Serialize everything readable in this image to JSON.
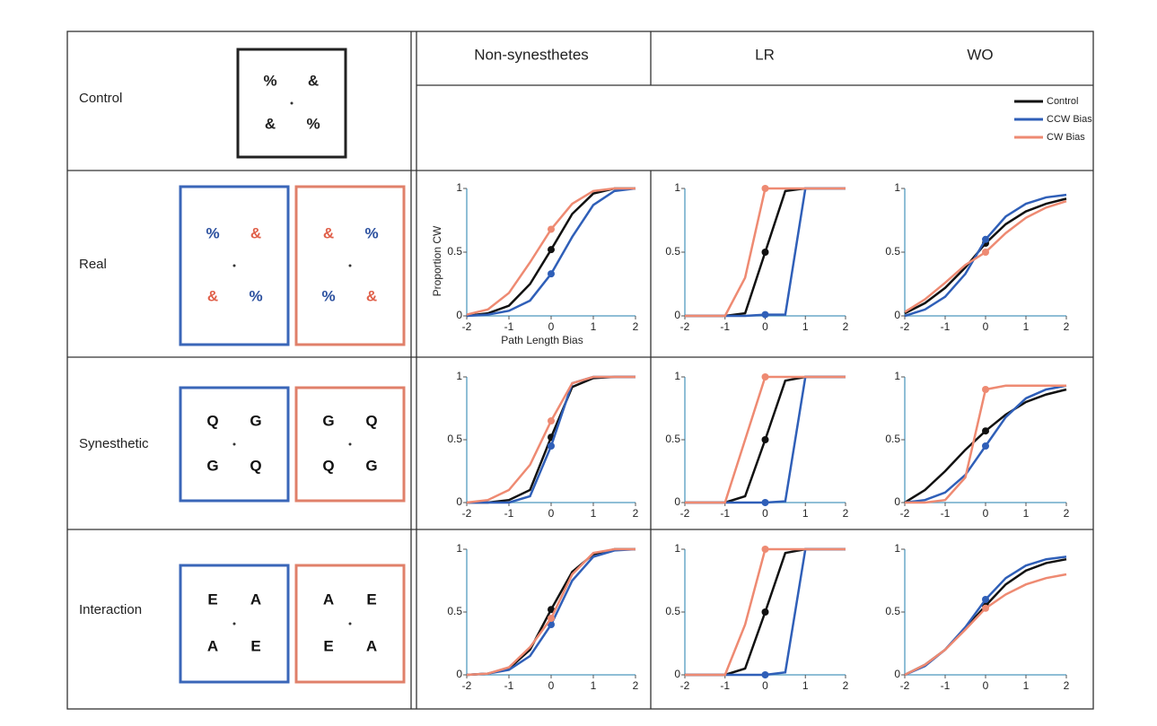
{
  "figure": {
    "columns": [
      "Non-synesthetes",
      "LR",
      "WO"
    ],
    "rows": [
      {
        "label": "Control",
        "boxes": [
          {
            "frame": "#222222",
            "glyphs": [
              {
                "char": "%",
                "color": "#222222"
              },
              {
                "char": "&",
                "color": "#222222"
              },
              {
                "char": "&",
                "color": "#222222"
              },
              {
                "char": "%",
                "color": "#222222"
              }
            ]
          }
        ]
      },
      {
        "label": "Real",
        "boxes": [
          {
            "frame": "#3a66b8",
            "glyphs": [
              {
                "char": "%",
                "color": "#2a4f9e"
              },
              {
                "char": "&",
                "color": "#e0604a"
              },
              {
                "char": "&",
                "color": "#e0604a"
              },
              {
                "char": "%",
                "color": "#2a4f9e"
              }
            ]
          },
          {
            "frame": "#e0806a",
            "glyphs": [
              {
                "char": "&",
                "color": "#e0604a"
              },
              {
                "char": "%",
                "color": "#2a4f9e"
              },
              {
                "char": "%",
                "color": "#2a4f9e"
              },
              {
                "char": "&",
                "color": "#e0604a"
              }
            ]
          }
        ]
      },
      {
        "label": "Synesthetic",
        "boxes": [
          {
            "frame": "#3a66b8",
            "glyphs": [
              {
                "char": "Q",
                "color": "#111111"
              },
              {
                "char": "G",
                "color": "#111111"
              },
              {
                "char": "G",
                "color": "#111111"
              },
              {
                "char": "Q",
                "color": "#111111"
              }
            ]
          },
          {
            "frame": "#e0806a",
            "glyphs": [
              {
                "char": "G",
                "color": "#111111"
              },
              {
                "char": "Q",
                "color": "#111111"
              },
              {
                "char": "Q",
                "color": "#111111"
              },
              {
                "char": "G",
                "color": "#111111"
              }
            ]
          }
        ]
      },
      {
        "label": "Interaction",
        "boxes": [
          {
            "frame": "#3a66b8",
            "glyphs": [
              {
                "char": "E",
                "color": "#111111"
              },
              {
                "char": "A",
                "color": "#111111"
              },
              {
                "char": "A",
                "color": "#111111"
              },
              {
                "char": "E",
                "color": "#111111"
              }
            ]
          },
          {
            "frame": "#e0806a",
            "glyphs": [
              {
                "char": "A",
                "color": "#111111"
              },
              {
                "char": "E",
                "color": "#111111"
              },
              {
                "char": "E",
                "color": "#111111"
              },
              {
                "char": "A",
                "color": "#111111"
              }
            ]
          }
        ]
      }
    ]
  },
  "chart_data": [
    {
      "type": "line",
      "xlabel": "Path Length Bias",
      "ylabel": "Proportion CW",
      "x": [
        -2,
        -1.5,
        -1,
        -0.5,
        0,
        0.5,
        1,
        1.5,
        2
      ],
      "xlim": [
        -2,
        2
      ],
      "ylim": [
        0,
        1
      ],
      "xticks": [
        -2,
        -1,
        0,
        1,
        2
      ],
      "yticks": [
        0,
        0.5,
        1
      ],
      "series": [
        {
          "name": "Control",
          "color": "#111111",
          "values": [
            0,
            0.02,
            0.08,
            0.25,
            0.52,
            0.8,
            0.96,
            1,
            1
          ]
        },
        {
          "name": "CCW Bias",
          "color": "#2f5fb8",
          "values": [
            0,
            0.01,
            0.04,
            0.12,
            0.33,
            0.62,
            0.87,
            0.98,
            1
          ]
        },
        {
          "name": "CW Bias",
          "color": "#ee8a72",
          "values": [
            0.01,
            0.05,
            0.18,
            0.42,
            0.68,
            0.88,
            0.98,
            1,
            1
          ]
        }
      ]
    },
    {
      "type": "line",
      "x": [
        -2,
        -1.5,
        -1,
        -0.5,
        0,
        0.5,
        1,
        1.5,
        2
      ],
      "xlim": [
        -2,
        2
      ],
      "ylim": [
        0,
        1
      ],
      "xticks": [
        -2,
        -1,
        0,
        1,
        2
      ],
      "yticks": [
        0,
        0.5,
        1
      ],
      "series": [
        {
          "color": "#111111",
          "values": [
            0,
            0,
            0,
            0.02,
            0.5,
            0.98,
            1,
            1,
            1
          ]
        },
        {
          "color": "#2f5fb8",
          "values": [
            0,
            0,
            0,
            0,
            0.01,
            0.01,
            1,
            1,
            1
          ]
        },
        {
          "color": "#ee8a72",
          "values": [
            0,
            0,
            0,
            0.3,
            1,
            1,
            1,
            1,
            1
          ]
        }
      ]
    },
    {
      "type": "line",
      "x": [
        -2,
        -1.5,
        -1,
        -0.5,
        0,
        0.5,
        1,
        1.5,
        2
      ],
      "xlim": [
        -2,
        2
      ],
      "ylim": [
        0,
        1
      ],
      "xticks": [
        -2,
        -1,
        0,
        1,
        2
      ],
      "yticks": [
        0,
        0.5,
        1
      ],
      "series": [
        {
          "color": "#111111",
          "values": [
            0.02,
            0.1,
            0.22,
            0.38,
            0.57,
            0.72,
            0.82,
            0.88,
            0.92
          ]
        },
        {
          "color": "#2f5fb8",
          "values": [
            0,
            0.05,
            0.15,
            0.33,
            0.6,
            0.78,
            0.88,
            0.93,
            0.95
          ]
        },
        {
          "color": "#ee8a72",
          "values": [
            0.03,
            0.13,
            0.26,
            0.4,
            0.5,
            0.65,
            0.77,
            0.85,
            0.9
          ]
        }
      ]
    },
    {
      "type": "line",
      "x": [
        -2,
        -1.5,
        -1,
        -0.5,
        0,
        0.5,
        1,
        1.5,
        2
      ],
      "xlim": [
        -2,
        2
      ],
      "ylim": [
        0,
        1
      ],
      "xticks": [
        -2,
        -1,
        0,
        1,
        2
      ],
      "yticks": [
        0,
        0.5,
        1
      ],
      "series": [
        {
          "color": "#111111",
          "values": [
            0,
            0,
            0.02,
            0.1,
            0.52,
            0.92,
            0.99,
            1,
            1
          ]
        },
        {
          "color": "#2f5fb8",
          "values": [
            0,
            0,
            0,
            0.05,
            0.45,
            0.95,
            1,
            1,
            1
          ]
        },
        {
          "color": "#ee8a72",
          "values": [
            0,
            0.02,
            0.1,
            0.3,
            0.65,
            0.95,
            1,
            1,
            1
          ]
        }
      ]
    },
    {
      "type": "line",
      "x": [
        -2,
        -1.5,
        -1,
        -0.5,
        0,
        0.5,
        1,
        1.5,
        2
      ],
      "xlim": [
        -2,
        2
      ],
      "ylim": [
        0,
        1
      ],
      "xticks": [
        -2,
        -1,
        0,
        1,
        2
      ],
      "yticks": [
        0,
        0.5,
        1
      ],
      "series": [
        {
          "color": "#111111",
          "values": [
            0,
            0,
            0,
            0.05,
            0.5,
            0.97,
            1,
            1,
            1
          ]
        },
        {
          "color": "#2f5fb8",
          "values": [
            0,
            0,
            0,
            0,
            0,
            0.01,
            1,
            1,
            1
          ]
        },
        {
          "color": "#ee8a72",
          "values": [
            0,
            0,
            0,
            0.5,
            1,
            1,
            1,
            1,
            1
          ]
        }
      ]
    },
    {
      "type": "line",
      "x": [
        -2,
        -1.5,
        -1,
        -0.5,
        0,
        0.5,
        1,
        1.5,
        2
      ],
      "xlim": [
        -2,
        2
      ],
      "ylim": [
        0,
        1
      ],
      "xticks": [
        -2,
        -1,
        0,
        1,
        2
      ],
      "yticks": [
        0,
        0.5,
        1
      ],
      "series": [
        {
          "color": "#111111",
          "values": [
            0,
            0.1,
            0.25,
            0.42,
            0.57,
            0.7,
            0.8,
            0.86,
            0.9
          ]
        },
        {
          "color": "#2f5fb8",
          "values": [
            0,
            0.02,
            0.08,
            0.22,
            0.45,
            0.68,
            0.83,
            0.9,
            0.93
          ]
        },
        {
          "color": "#ee8a72",
          "values": [
            0,
            0,
            0.02,
            0.2,
            0.9,
            0.93,
            0.93,
            0.93,
            0.93
          ]
        }
      ]
    },
    {
      "type": "line",
      "x": [
        -2,
        -1.5,
        -1,
        -0.5,
        0,
        0.5,
        1,
        1.5,
        2
      ],
      "xlim": [
        -2,
        2
      ],
      "ylim": [
        0,
        1
      ],
      "xticks": [
        -2,
        -1,
        0,
        1,
        2
      ],
      "yticks": [
        0,
        0.5,
        1
      ],
      "series": [
        {
          "color": "#111111",
          "values": [
            0,
            0.01,
            0.05,
            0.2,
            0.52,
            0.82,
            0.96,
            1,
            1
          ]
        },
        {
          "color": "#2f5fb8",
          "values": [
            0,
            0.01,
            0.04,
            0.15,
            0.4,
            0.75,
            0.94,
            0.99,
            1
          ]
        },
        {
          "color": "#ee8a72",
          "values": [
            0,
            0.01,
            0.06,
            0.22,
            0.45,
            0.8,
            0.97,
            1,
            1
          ]
        }
      ]
    },
    {
      "type": "line",
      "x": [
        -2,
        -1.5,
        -1,
        -0.5,
        0,
        0.5,
        1,
        1.5,
        2
      ],
      "xlim": [
        -2,
        2
      ],
      "ylim": [
        0,
        1
      ],
      "xticks": [
        -2,
        -1,
        0,
        1,
        2
      ],
      "yticks": [
        0,
        0.5,
        1
      ],
      "series": [
        {
          "color": "#111111",
          "values": [
            0,
            0,
            0,
            0.05,
            0.5,
            0.97,
            1,
            1,
            1
          ]
        },
        {
          "color": "#2f5fb8",
          "values": [
            0,
            0,
            0,
            0,
            0,
            0.02,
            1,
            1,
            1
          ]
        },
        {
          "color": "#ee8a72",
          "values": [
            0,
            0,
            0,
            0.4,
            1,
            1,
            1,
            1,
            1
          ]
        }
      ]
    },
    {
      "type": "line",
      "x": [
        -2,
        -1.5,
        -1,
        -0.5,
        0,
        0.5,
        1,
        1.5,
        2
      ],
      "xlim": [
        -2,
        2
      ],
      "ylim": [
        0,
        1
      ],
      "xticks": [
        -2,
        -1,
        0,
        1,
        2
      ],
      "yticks": [
        0,
        0.5,
        1
      ],
      "series": [
        {
          "color": "#111111",
          "values": [
            0,
            0.08,
            0.2,
            0.37,
            0.55,
            0.72,
            0.83,
            0.89,
            0.92
          ]
        },
        {
          "color": "#2f5fb8",
          "values": [
            0,
            0.07,
            0.2,
            0.38,
            0.6,
            0.77,
            0.87,
            0.92,
            0.94
          ]
        },
        {
          "color": "#ee8a72",
          "values": [
            0,
            0.08,
            0.2,
            0.36,
            0.53,
            0.64,
            0.72,
            0.77,
            0.8
          ]
        }
      ]
    }
  ]
}
